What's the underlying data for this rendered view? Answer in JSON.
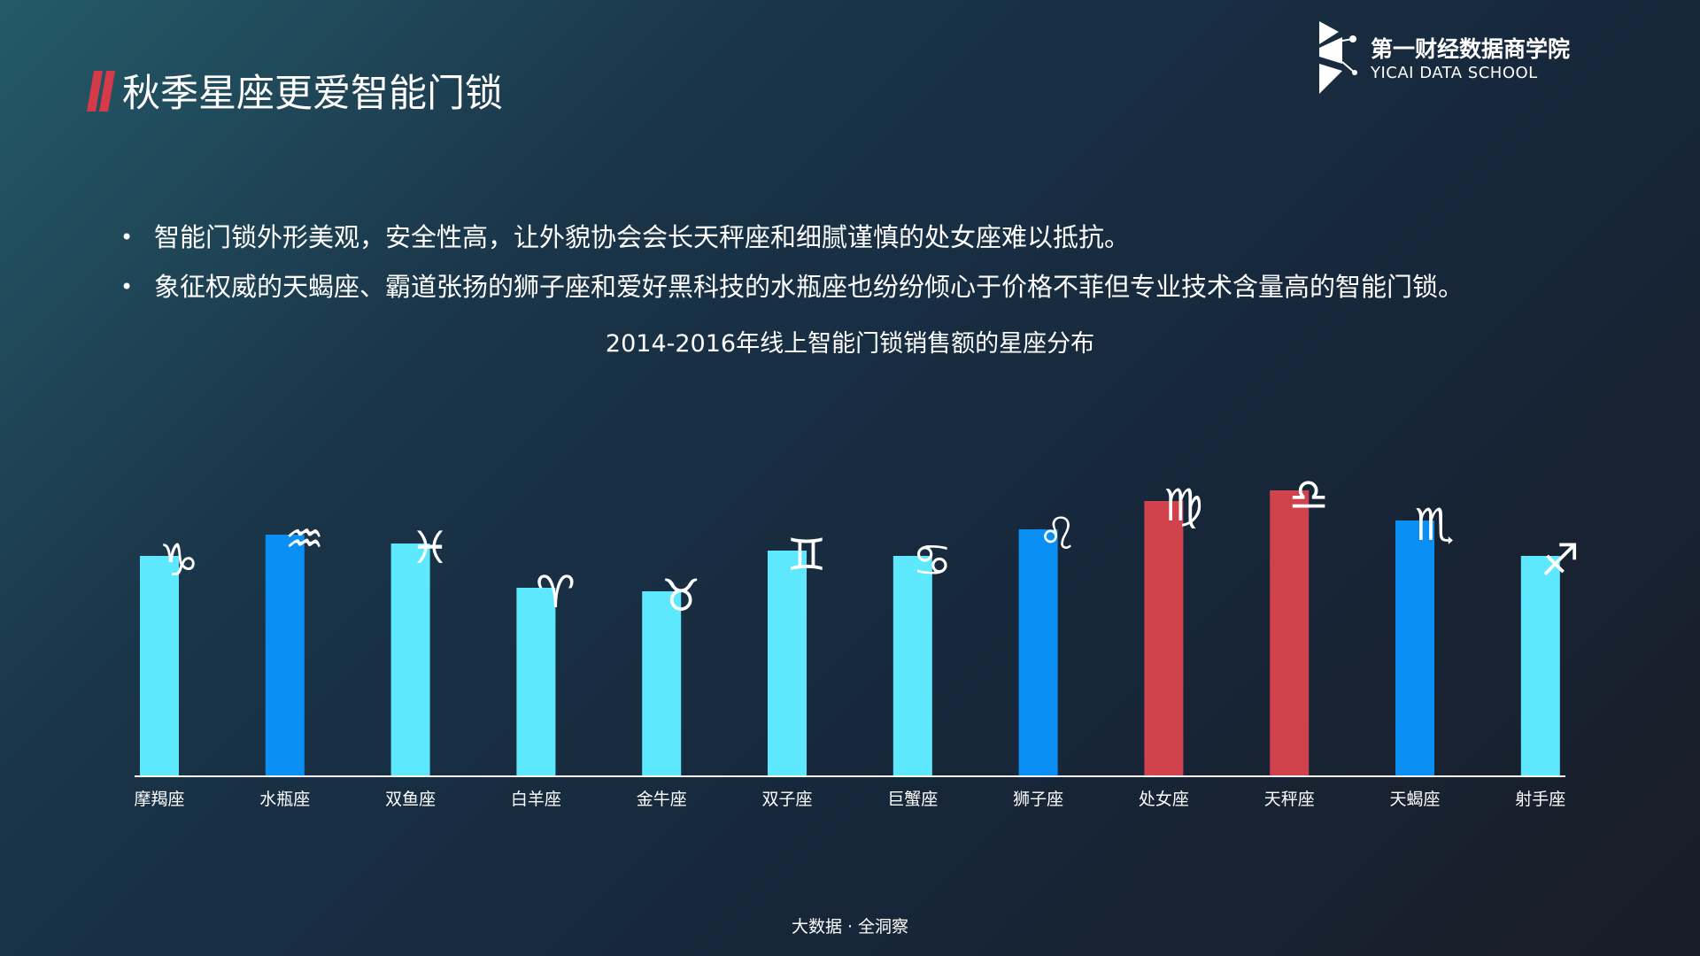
{
  "header": {
    "title": "秋季星座更爱智能门锁",
    "accent_color": "#d43a48"
  },
  "logo": {
    "name": "第一财经数据商学院",
    "subtitle": "YICAI DATA SCHOOL"
  },
  "bullets": [
    "智能门锁外形美观，安全性高，让外貌协会会长天秤座和细腻谨慎的处女座难以抵抗。",
    "象征权威的天蝎座、霸道张扬的狮子座和爱好黑科技的水瓶座也纷纷倾心于价格不菲但专业技术含量高的智能门锁。"
  ],
  "chart_data": {
    "type": "bar",
    "title": "2014-2016年线上智能门锁销售额的星座分布",
    "xlabel": "",
    "ylabel": "",
    "ylim": [
      0,
      100
    ],
    "grid": false,
    "legend": "none",
    "categories": [
      "摩羯座",
      "水瓶座",
      "双鱼座",
      "白羊座",
      "金牛座",
      "双子座",
      "巨蟹座",
      "狮子座",
      "处女座",
      "天秤座",
      "天蝎座",
      "射手座"
    ],
    "values": [
      62,
      68,
      65.5,
      53,
      52,
      63.5,
      62,
      69.5,
      77.5,
      80.5,
      72,
      62
    ],
    "signs": [
      "♑",
      "♒",
      "♓",
      "♈",
      "♉",
      "♊",
      "♋",
      "♌",
      "♍",
      "♎",
      "♏",
      "♐"
    ],
    "bar_colors": [
      "#5ee8fd",
      "#0a8ff5",
      "#5ee8fd",
      "#5ee8fd",
      "#5ee8fd",
      "#5ee8fd",
      "#5ee8fd",
      "#0a8ff5",
      "#d0434d",
      "#d0434d",
      "#0a8ff5",
      "#5ee8fd"
    ]
  },
  "footer": "大数据 · 全洞察"
}
